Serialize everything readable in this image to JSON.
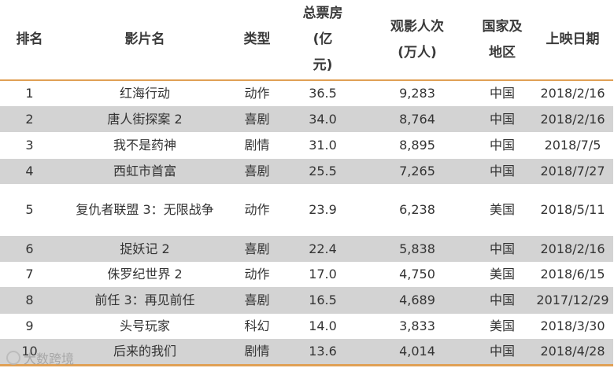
{
  "headers": {
    "rank": "排名",
    "film": "影片名",
    "genre": "类型",
    "box_office": [
      "总票房",
      "(亿",
      "元)"
    ],
    "admissions": [
      "观影人次",
      "(万人)"
    ],
    "region": [
      "国家及",
      "地区"
    ],
    "release": "上映日期"
  },
  "rows": [
    {
      "rank": "1",
      "film": "红海行动",
      "genre": "动作",
      "box": "36.5",
      "viewers": "9,283",
      "country": "中国",
      "date": "2018/2/16"
    },
    {
      "rank": "2",
      "film": "唐人街探案 2",
      "genre": "喜剧",
      "box": "34.0",
      "viewers": "8,764",
      "country": "中国",
      "date": "2018/2/16"
    },
    {
      "rank": "3",
      "film": "我不是药神",
      "genre": "剧情",
      "box": "31.0",
      "viewers": "8,895",
      "country": "中国",
      "date": "2018/7/5"
    },
    {
      "rank": "4",
      "film": "西虹市首富",
      "genre": "喜剧",
      "box": "25.5",
      "viewers": "7,265",
      "country": "中国",
      "date": "2018/7/27"
    },
    {
      "rank": "5",
      "film": "复仇者联盟 3：无限战争",
      "genre": "动作",
      "box": "23.9",
      "viewers": "6,238",
      "country": "美国",
      "date": "2018/5/11"
    },
    {
      "rank": "6",
      "film": "捉妖记 2",
      "genre": "喜剧",
      "box": "22.4",
      "viewers": "5,838",
      "country": "中国",
      "date": "2018/2/16"
    },
    {
      "rank": "7",
      "film": "侏罗纪世界 2",
      "genre": "动作",
      "box": "17.0",
      "viewers": "4,750",
      "country": "美国",
      "date": "2018/6/15"
    },
    {
      "rank": "8",
      "film": "前任 3：再见前任",
      "genre": "喜剧",
      "box": "16.5",
      "viewers": "4,689",
      "country": "中国",
      "date": "2017/12/29"
    },
    {
      "rank": "9",
      "film": "头号玩家",
      "genre": "科幻",
      "box": "14.0",
      "viewers": "3,833",
      "country": "美国",
      "date": "2018/3/30"
    },
    {
      "rank": "10",
      "film": "后来的我们",
      "genre": "剧情",
      "box": "13.6",
      "viewers": "4,014",
      "country": "中国",
      "date": "2018/4/28"
    }
  ],
  "watermark": "大数跨境",
  "colors": {
    "accent": "#e0a055",
    "shade": "#d3d3d3"
  }
}
